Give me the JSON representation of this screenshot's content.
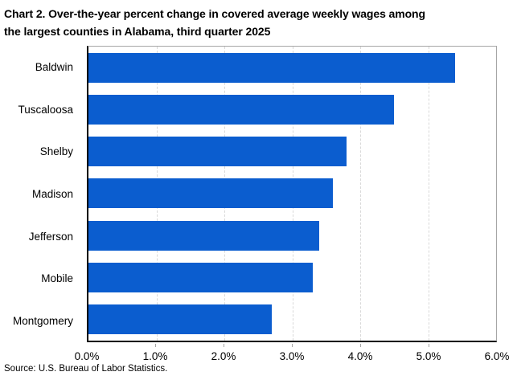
{
  "header": {
    "title": "Chart 2. Over-the-year percent change in covered average weekly wages among the largest counties in Alabama, third quarter 2025",
    "title_lines": [
      "Chart 2. Over-the-year percent change in covered average weekly wages among",
      "the largest counties in Alabama, third quarter 2025"
    ]
  },
  "footer": {
    "source": "Source: U.S. Bureau of Labor Statistics."
  },
  "chart_data": {
    "type": "bar",
    "orientation": "horizontal",
    "title": "Chart 2. Over-the-year percent change in covered average weekly wages among the largest counties in Alabama, third quarter 2025",
    "categories": [
      "Baldwin",
      "Tuscaloosa",
      "Shelby",
      "Madison",
      "Jefferson",
      "Mobile",
      "Montgomery"
    ],
    "values": [
      5.4,
      4.5,
      3.8,
      3.6,
      3.4,
      3.3,
      2.7
    ],
    "value_unit": "percent",
    "xlabel": "",
    "ylabel": "",
    "xlim": [
      0,
      6
    ],
    "x_tick_labels": [
      "0.0%",
      "1.0%",
      "2.0%",
      "3.0%",
      "4.0%",
      "5.0%",
      "6.0%"
    ],
    "grid": "vertical-dashed",
    "legend": "none",
    "bar_color": "#0b5dcf",
    "gridline_color": "#d9d9d9",
    "axis_color": "#000000",
    "border_color": "#a6a6a6"
  }
}
